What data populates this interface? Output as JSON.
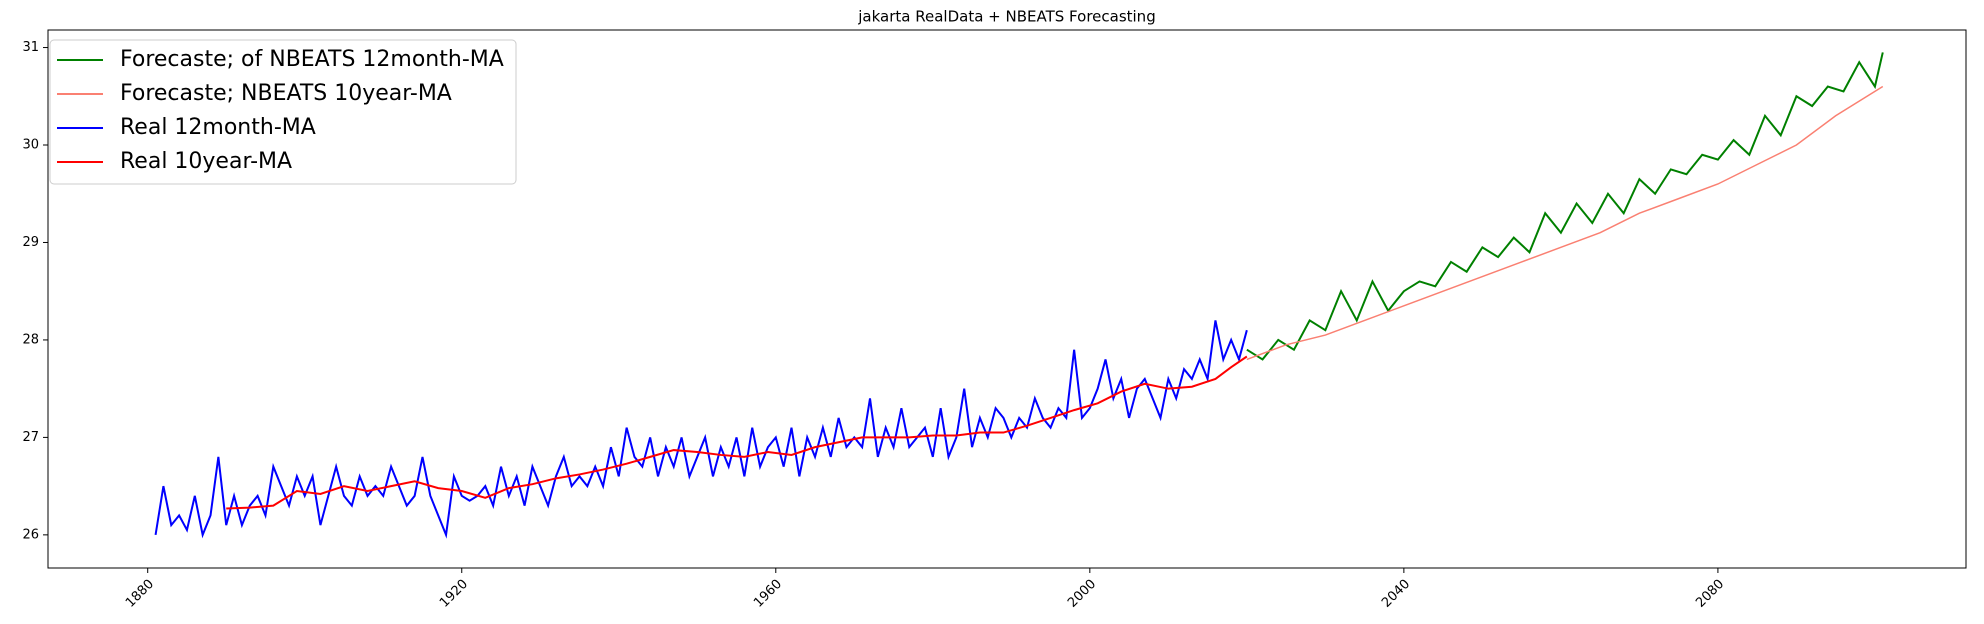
{
  "chart_data": {
    "type": "line",
    "title": "jakarta RealData + NBEATS Forecasting",
    "xlim": [
      1867.3,
      2111.6
    ],
    "xticks": [
      1880,
      1920,
      1960,
      2000,
      2040,
      2080
    ],
    "ylim": [
      25.66,
      31.18
    ],
    "yticks": [
      26,
      27,
      28,
      29,
      30,
      31
    ],
    "grid": false,
    "legend": "upper left",
    "series": [
      {
        "name": "Forecaste; of NBEATS 12month-MA",
        "color": "#008000",
        "x": [
          2020,
          2022,
          2024,
          2026,
          2028,
          2030,
          2032,
          2034,
          2036,
          2038,
          2040,
          2042,
          2044,
          2046,
          2048,
          2050,
          2052,
          2054,
          2056,
          2058,
          2060,
          2062,
          2064,
          2066,
          2068,
          2070,
          2072,
          2074,
          2076,
          2078,
          2080,
          2082,
          2084,
          2086,
          2088,
          2090,
          2092,
          2094,
          2096,
          2098,
          2100,
          2101
        ],
        "values": [
          27.9,
          27.8,
          28.0,
          27.9,
          28.2,
          28.1,
          28.5,
          28.2,
          28.6,
          28.3,
          28.5,
          28.6,
          28.55,
          28.8,
          28.7,
          28.95,
          28.85,
          29.05,
          28.9,
          29.3,
          29.1,
          29.4,
          29.2,
          29.5,
          29.3,
          29.65,
          29.5,
          29.75,
          29.7,
          29.9,
          29.85,
          30.05,
          29.9,
          30.3,
          30.1,
          30.5,
          30.4,
          30.6,
          30.55,
          30.85,
          30.6,
          30.95
        ]
      },
      {
        "name": "Forecaste; NBEATS 10year-MA",
        "color": "#fa8072",
        "x": [
          2020,
          2025,
          2030,
          2035,
          2040,
          2045,
          2050,
          2055,
          2060,
          2065,
          2070,
          2075,
          2080,
          2085,
          2090,
          2095,
          2101
        ],
        "values": [
          27.8,
          27.95,
          28.05,
          28.2,
          28.35,
          28.5,
          28.65,
          28.8,
          28.95,
          29.1,
          29.3,
          29.45,
          29.6,
          29.8,
          30.0,
          30.3,
          30.6
        ]
      },
      {
        "name": "Real 12month-MA",
        "color": "#0000ff",
        "x": [
          1881,
          1882,
          1883,
          1884,
          1885,
          1886,
          1887,
          1888,
          1889,
          1890,
          1891,
          1892,
          1893,
          1894,
          1895,
          1896,
          1897,
          1898,
          1899,
          1900,
          1901,
          1902,
          1903,
          1904,
          1905,
          1906,
          1907,
          1908,
          1909,
          1910,
          1911,
          1912,
          1913,
          1914,
          1915,
          1916,
          1917,
          1918,
          1919,
          1920,
          1921,
          1922,
          1923,
          1924,
          1925,
          1926,
          1927,
          1928,
          1929,
          1930,
          1931,
          1932,
          1933,
          1934,
          1935,
          1936,
          1937,
          1938,
          1939,
          1940,
          1941,
          1942,
          1943,
          1944,
          1945,
          1946,
          1947,
          1948,
          1949,
          1950,
          1951,
          1952,
          1953,
          1954,
          1955,
          1956,
          1957,
          1958,
          1959,
          1960,
          1961,
          1962,
          1963,
          1964,
          1965,
          1966,
          1967,
          1968,
          1969,
          1970,
          1971,
          1972,
          1973,
          1974,
          1975,
          1976,
          1977,
          1978,
          1979,
          1980,
          1981,
          1982,
          1983,
          1984,
          1985,
          1986,
          1987,
          1988,
          1989,
          1990,
          1991,
          1992,
          1993,
          1994,
          1995,
          1996,
          1997,
          1998,
          1999,
          2000,
          2001,
          2002,
          2003,
          2004,
          2005,
          2006,
          2007,
          2008,
          2009,
          2010,
          2011,
          2012,
          2013,
          2014,
          2015,
          2016,
          2017,
          2018,
          2019,
          2020
        ],
        "values": [
          26.0,
          26.5,
          26.1,
          26.2,
          26.05,
          26.4,
          26.0,
          26.2,
          26.8,
          26.1,
          26.4,
          26.1,
          26.3,
          26.4,
          26.2,
          26.7,
          26.5,
          26.3,
          26.6,
          26.4,
          26.6,
          26.1,
          26.4,
          26.7,
          26.4,
          26.3,
          26.6,
          26.4,
          26.5,
          26.4,
          26.7,
          26.5,
          26.3,
          26.4,
          26.8,
          26.4,
          26.2,
          26.0,
          26.6,
          26.4,
          26.35,
          26.4,
          26.5,
          26.3,
          26.7,
          26.4,
          26.6,
          26.3,
          26.7,
          26.5,
          26.3,
          26.6,
          26.8,
          26.5,
          26.6,
          26.5,
          26.7,
          26.5,
          26.9,
          26.6,
          27.1,
          26.8,
          26.7,
          27.0,
          26.6,
          26.9,
          26.7,
          27.0,
          26.6,
          26.8,
          27.0,
          26.6,
          26.9,
          26.7,
          27.0,
          26.6,
          27.1,
          26.7,
          26.9,
          27.0,
          26.7,
          27.1,
          26.6,
          27.0,
          26.8,
          27.1,
          26.8,
          27.2,
          26.9,
          27.0,
          26.9,
          27.4,
          26.8,
          27.1,
          26.9,
          27.3,
          26.9,
          27.0,
          27.1,
          26.8,
          27.3,
          26.8,
          27.0,
          27.5,
          26.9,
          27.2,
          27.0,
          27.3,
          27.2,
          27.0,
          27.2,
          27.1,
          27.4,
          27.2,
          27.1,
          27.3,
          27.2,
          27.9,
          27.2,
          27.3,
          27.5,
          27.8,
          27.4,
          27.6,
          27.2,
          27.5,
          27.6,
          27.4,
          27.2,
          27.6,
          27.4,
          27.7,
          27.6,
          27.8,
          27.6,
          28.2,
          27.8,
          28.0,
          27.8,
          28.1
        ]
      },
      {
        "name": "Real 10year-MA",
        "color": "#ff0000",
        "x": [
          1890,
          1893,
          1896,
          1899,
          1902,
          1905,
          1908,
          1911,
          1914,
          1917,
          1920,
          1923,
          1926,
          1929,
          1932,
          1935,
          1938,
          1941,
          1944,
          1947,
          1950,
          1953,
          1956,
          1959,
          1962,
          1965,
          1968,
          1971,
          1974,
          1977,
          1980,
          1983,
          1986,
          1989,
          1992,
          1995,
          1998,
          2001,
          2004,
          2007,
          2010,
          2013,
          2016,
          2018,
          2020
        ],
        "values": [
          26.27,
          26.28,
          26.3,
          26.45,
          26.42,
          26.5,
          26.45,
          26.5,
          26.55,
          26.48,
          26.45,
          26.38,
          26.48,
          26.52,
          26.58,
          26.62,
          26.67,
          26.73,
          26.8,
          26.87,
          26.85,
          26.82,
          26.8,
          26.85,
          26.82,
          26.9,
          26.95,
          27.0,
          27.0,
          27.0,
          27.02,
          27.02,
          27.05,
          27.05,
          27.12,
          27.2,
          27.28,
          27.35,
          27.47,
          27.55,
          27.5,
          27.52,
          27.6,
          27.72,
          27.83
        ]
      }
    ]
  }
}
